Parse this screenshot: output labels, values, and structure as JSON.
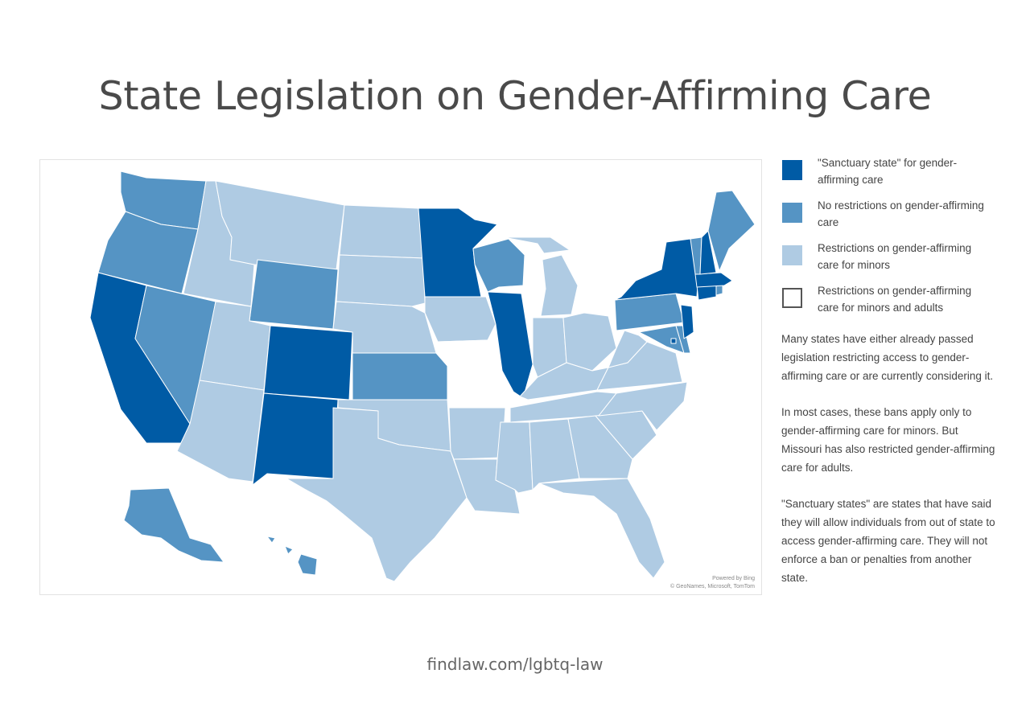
{
  "title": "State Legislation on Gender-Affirming Care",
  "colors": {
    "sanctuary": "#005ba5",
    "no_restrictions": "#5594c4",
    "minors": "#afcbe3",
    "adults": "#ffffff"
  },
  "legend": [
    {
      "label": "\"Sanctuary state\" for gender-affirming care",
      "category": "sanctuary"
    },
    {
      "label": "No restrictions on gender-affirming care",
      "category": "no_restrictions"
    },
    {
      "label": "Restrictions on gender-affirming care for minors",
      "category": "minors"
    },
    {
      "label": "Restrictions on gender-affirming care for minors and adults",
      "category": "adults"
    }
  ],
  "notes": [
    "Many states have either already passed legislation restricting access to gender-affirming care or are currently considering it.",
    "In most cases, these bans apply only to gender-affirming care for minors. But Missouri has also restricted gender-affirming care for adults.",
    "\"Sanctuary states\" are states that have said they will allow individuals from out of state to access gender-affirming care. They will not enforce a ban or penalties from another state."
  ],
  "map_credit": {
    "line1": "Powered by Bing",
    "line2": "© GeoNames, Microsoft, TomTom"
  },
  "footer": "findlaw.com/lgbtq-law",
  "states": {
    "WA": "no_restrictions",
    "OR": "no_restrictions",
    "CA": "sanctuary",
    "NV": "no_restrictions",
    "ID": "minors",
    "MT": "minors",
    "WY": "no_restrictions",
    "UT": "minors",
    "AZ": "minors",
    "CO": "sanctuary",
    "NM": "sanctuary",
    "ND": "minors",
    "SD": "minors",
    "NE": "minors",
    "KS": "no_restrictions",
    "OK": "minors",
    "TX": "minors",
    "MN": "sanctuary",
    "IA": "minors",
    "MO": "adults",
    "AR": "minors",
    "LA": "minors",
    "WI": "no_restrictions",
    "IL": "sanctuary",
    "MI": "minors",
    "IN": "minors",
    "OH": "minors",
    "KY": "minors",
    "TN": "minors",
    "MS": "minors",
    "AL": "minors",
    "GA": "minors",
    "FL": "minors",
    "SC": "minors",
    "NC": "minors",
    "VA": "minors",
    "WV": "minors",
    "PA": "no_restrictions",
    "NY": "sanctuary",
    "VT": "no_restrictions",
    "NH": "sanctuary",
    "ME": "no_restrictions",
    "MA": "sanctuary",
    "RI": "no_restrictions",
    "CT": "sanctuary",
    "NJ": "sanctuary",
    "DE": "no_restrictions",
    "MD": "no_restrictions",
    "DC": "sanctuary",
    "AK": "no_restrictions",
    "HI": "no_restrictions"
  }
}
